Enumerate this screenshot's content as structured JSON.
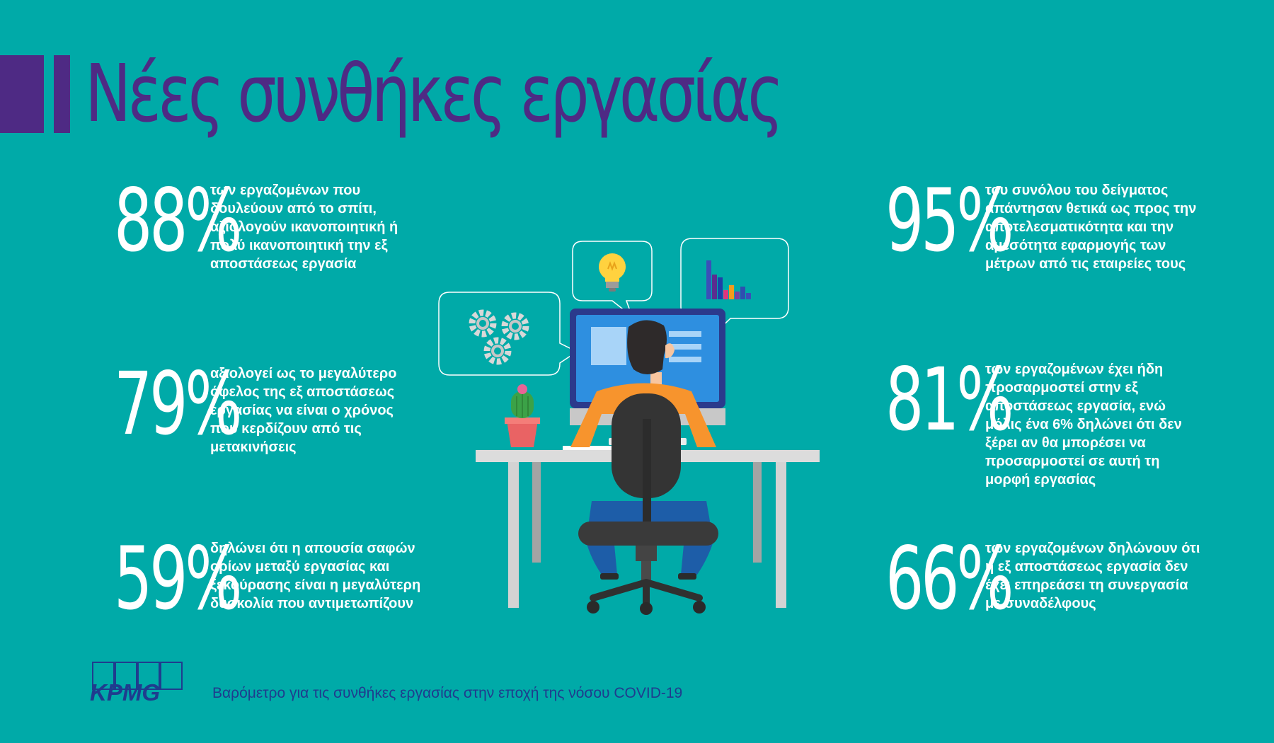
{
  "header": {
    "title": "Νέες συνθήκες εργασίας"
  },
  "stats": [
    {
      "value": "88%",
      "text": "των εργαζομένων που δουλεύουν από το σπίτι, αξιολογούν ικανοποιητική ή πολύ ικανοποιητική την εξ αποστάσεως εργασία"
    },
    {
      "value": "79%",
      "text": "αξιολογεί ως το μεγαλύτερο όφελος της εξ αποστάσεως εργασίας να είναι ο χρόνος που κερδίζουν από τις μετακινήσεις"
    },
    {
      "value": "59%",
      "text": "δηλώνει ότι η απουσία σαφών ορίων μεταξύ εργασίας και ξεκούρασης είναι η μεγαλύτερη δυσκολία που αντιμετωπίζουν"
    },
    {
      "value": "95%",
      "text": "του συνόλου του δείγματος απάντησαν θετικά ως προς την αποτελεσματικότητα και την αμεσότητα εφαρμογής των μέτρων από τις εταιρείες τους"
    },
    {
      "value": "81%",
      "text_before": "των εργαζομένων έχει ήδη προσαρμοστεί στην εξ αποστάσεως εργασία, ενώ μόλις ένα ",
      "highlight": "6%",
      "text_after": " δηλώνει ότι δεν ξέρει αν θα μπορέσει να προσαρμοστεί σε αυτή τη μορφή εργασίας"
    },
    {
      "value": "66%",
      "text": "των εργαζομένων δηλώνουν ότι η εξ αποστάσεως εργασία δεν έχει επηρεάσει τη συνεργασία με συναδέλφους"
    }
  ],
  "footer": {
    "logo_text": "KPMG",
    "caption": "Βαρόμετρο για τις συνθήκες εργασίας στην εποχή της νόσου COVID-19"
  },
  "colors": {
    "background": "#00AAA8",
    "accent_purple": "#4E2A84",
    "kpmg_blue": "#1F3C8E",
    "shirt_orange": "#F7942D",
    "bulb_yellow": "#FFD23F"
  },
  "icons": [
    "gears-icon",
    "lightbulb-icon",
    "bar-chart-icon",
    "cactus-icon"
  ]
}
